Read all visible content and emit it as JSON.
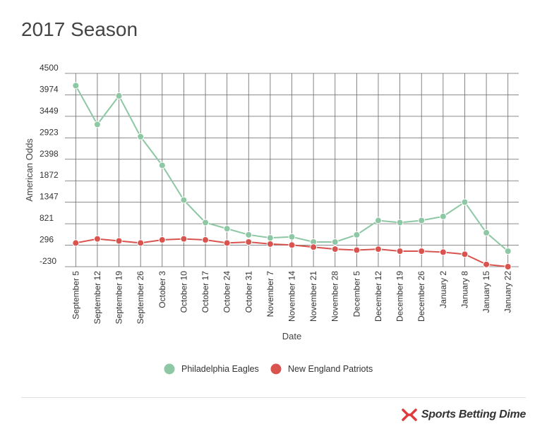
{
  "title": "2017 Season",
  "brand": {
    "name": "Sports Betting Dime",
    "accent": "#e03a3e"
  },
  "chart_data": {
    "type": "line",
    "xlabel": "Date",
    "ylabel": "American Odds",
    "ylim": [
      -230,
      4500
    ],
    "yticks": [
      4500,
      3974,
      3449,
      2923,
      2398,
      1872,
      1347,
      821,
      296,
      -230
    ],
    "categories": [
      "September 5",
      "September 12",
      "September 19",
      "September 26",
      "October 3",
      "October 10",
      "October 17",
      "October 24",
      "October 31",
      "November 7",
      "November 14",
      "November 21",
      "November 28",
      "December 5",
      "December 12",
      "December 19",
      "December 26",
      "January 2",
      "January 8",
      "January 15",
      "January 22"
    ],
    "grid": true,
    "legend_position": "bottom",
    "series": [
      {
        "name": "Philadelphia Eagles",
        "color": "#8dc7a3",
        "values": [
          4200,
          3250,
          3950,
          2950,
          2250,
          1400,
          850,
          700,
          550,
          475,
          500,
          375,
          375,
          550,
          900,
          850,
          900,
          1000,
          1350,
          600,
          150
        ]
      },
      {
        "name": "New England Patriots",
        "color": "#d9534f",
        "values": [
          350,
          450,
          400,
          350,
          425,
          450,
          425,
          350,
          375,
          325,
          300,
          250,
          200,
          175,
          200,
          150,
          150,
          125,
          75,
          -175,
          -230
        ]
      }
    ]
  }
}
